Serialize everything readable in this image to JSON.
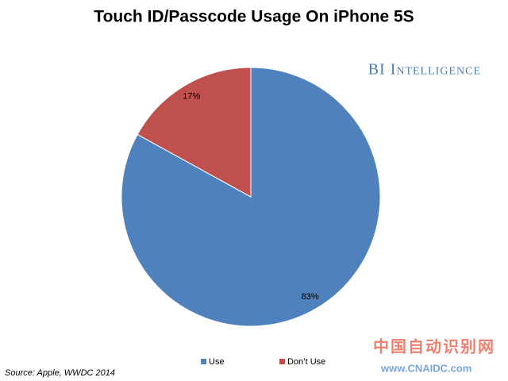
{
  "chart_data": {
    "type": "pie",
    "title": "Touch ID/Passcode Usage On iPhone 5S",
    "brand": "BI Intelligence",
    "categories": [
      "Use",
      "Don’t Use"
    ],
    "values": [
      83,
      17
    ],
    "value_labels": [
      "83%",
      "17%"
    ],
    "colors": [
      "#4f81bd",
      "#c0504d"
    ],
    "legend": "bottom",
    "source": "Source: Apple, WWDC 2014",
    "watermark": [
      "中国自动识别网",
      "www.CNAIDC.com"
    ]
  }
}
